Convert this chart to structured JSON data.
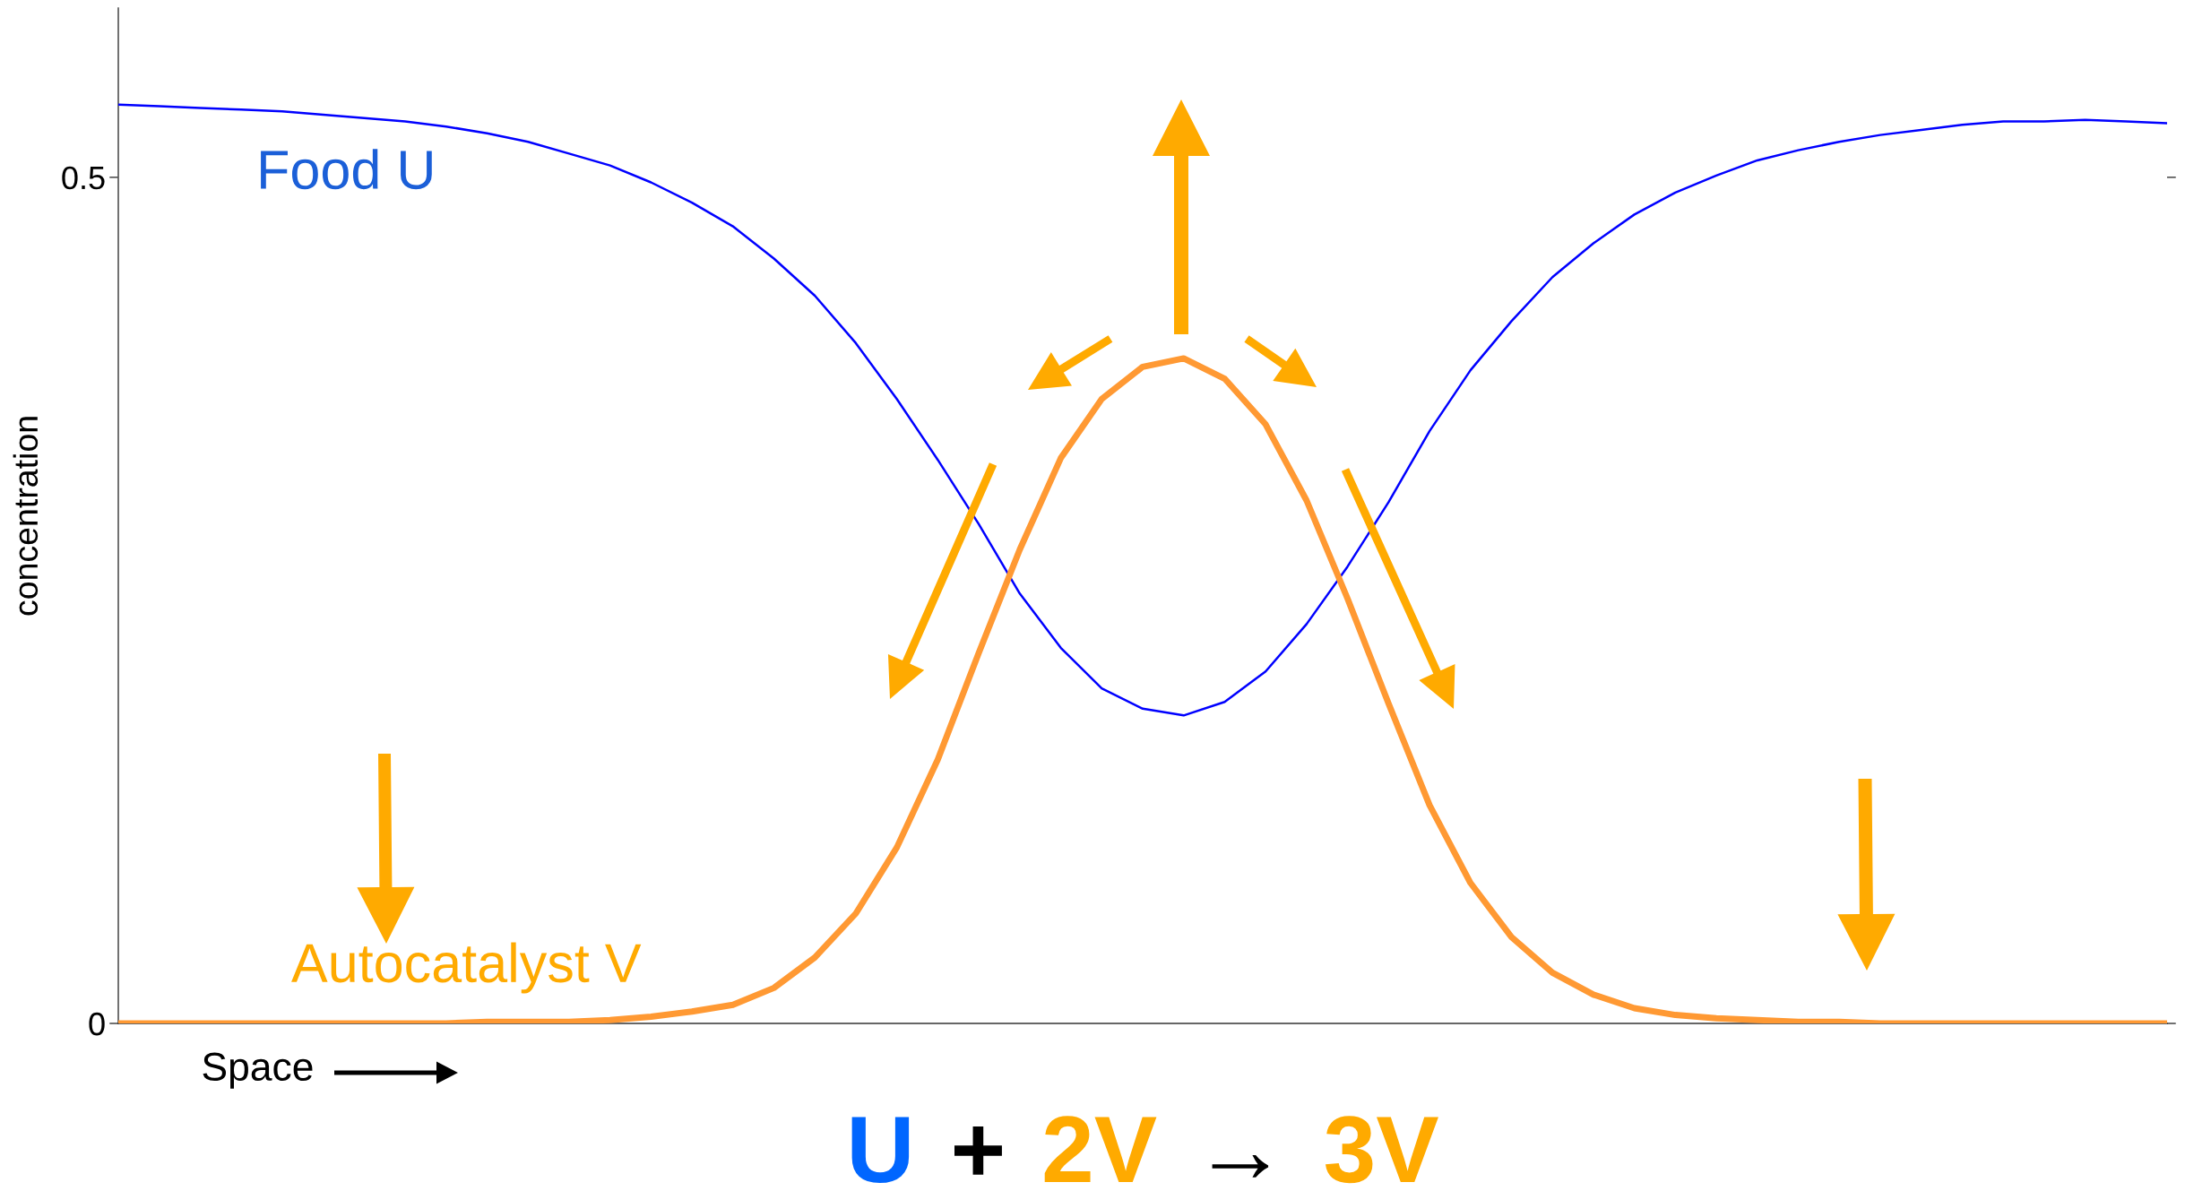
{
  "chart_data": {
    "type": "line",
    "xlabel": "Space",
    "ylabel": "concentration",
    "categories": [
      null,
      null,
      null,
      null,
      null,
      null,
      null,
      null,
      null,
      null,
      null,
      null,
      null,
      null,
      null,
      null,
      null,
      null,
      null,
      null,
      null,
      null,
      null,
      null,
      null,
      null,
      null,
      null,
      null,
      null,
      null,
      null,
      null,
      null,
      null,
      null,
      null,
      null,
      null,
      null,
      null,
      null,
      null,
      null,
      null,
      null,
      null,
      null,
      null,
      null,
      null
    ],
    "series": [
      {
        "name": "Food U",
        "color": "#0000ff",
        "values": [
          0.543,
          0.542,
          0.541,
          0.54,
          0.539,
          0.537,
          0.535,
          0.533,
          0.53,
          0.526,
          0.521,
          0.514,
          0.507,
          0.497,
          0.485,
          0.471,
          0.452,
          0.43,
          0.402,
          0.369,
          0.333,
          0.295,
          0.254,
          0.222,
          0.198,
          0.186,
          0.182,
          0.19,
          0.208,
          0.236,
          0.27,
          0.308,
          0.35,
          0.386,
          0.415,
          0.441,
          0.461,
          0.478,
          0.491,
          0.501,
          0.51,
          0.516,
          0.521,
          0.525,
          0.528,
          0.531,
          0.533,
          0.533,
          0.534,
          0.533,
          0.532
        ]
      },
      {
        "name": "Autocatalyst V",
        "color": "#ff9933",
        "values": [
          0,
          0,
          0,
          0,
          0,
          0,
          0,
          0,
          0,
          0.001,
          0.001,
          0.001,
          0.002,
          0.004,
          0.007,
          0.011,
          0.021,
          0.039,
          0.065,
          0.104,
          0.156,
          0.219,
          0.28,
          0.334,
          0.369,
          0.388,
          0.393,
          0.381,
          0.354,
          0.309,
          0.251,
          0.189,
          0.129,
          0.083,
          0.051,
          0.03,
          0.017,
          0.009,
          0.005,
          0.003,
          0.002,
          0.001,
          0.001,
          0,
          0,
          0,
          0,
          0,
          0,
          0,
          0
        ]
      }
    ],
    "ylim": [
      0,
      0.6
    ],
    "yticks": [
      0,
      0.5
    ],
    "tick_labels": "y",
    "grid": false,
    "legend": false,
    "marker": "none",
    "line_style": "solid",
    "annotations": [
      "U + 2V → 3V"
    ]
  }
}
